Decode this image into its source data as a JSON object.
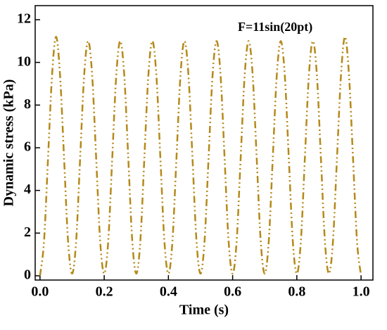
{
  "chart_data": {
    "type": "line",
    "xlabel": "Time (s)",
    "ylabel": "Dynamic stress (kPa)",
    "annotation": "F=11sin(20pt)",
    "x": [
      0,
      0.0125,
      0.025,
      0.0375,
      0.05,
      0.0625,
      0.075,
      0.0875,
      0.1,
      0.1125,
      0.125,
      0.1375,
      0.15,
      0.1625,
      0.175,
      0.1875,
      0.2,
      0.2125,
      0.225,
      0.2375,
      0.25,
      0.2625,
      0.275,
      0.2875,
      0.3,
      0.3125,
      0.325,
      0.3375,
      0.35,
      0.3625,
      0.375,
      0.3875,
      0.4,
      0.4125,
      0.425,
      0.4375,
      0.45,
      0.4625,
      0.475,
      0.4875,
      0.5,
      0.5125,
      0.525,
      0.5375,
      0.55,
      0.5625,
      0.575,
      0.5875,
      0.6,
      0.6125,
      0.625,
      0.6375,
      0.65,
      0.6625,
      0.675,
      0.6875,
      0.7,
      0.7125,
      0.725,
      0.7375,
      0.75,
      0.7625,
      0.775,
      0.7875,
      0.8,
      0.8125,
      0.825,
      0.8375,
      0.85,
      0.8625,
      0.875,
      0.8875,
      0.9,
      0.9125,
      0.925,
      0.9375,
      0.95,
      0.9625,
      0.975,
      0.9875,
      1
    ],
    "series": [
      {
        "name": "Dynamic stress",
        "color": "#b5891a",
        "values": [
          0,
          1.61,
          5.5,
          9.39,
          11.2,
          9.39,
          5.5,
          1.61,
          0.1,
          1.61,
          5.5,
          9.39,
          11,
          9.39,
          5.5,
          1.61,
          0.1,
          1.61,
          5.5,
          9.39,
          11,
          9.39,
          5.5,
          1.61,
          0.1,
          1.61,
          5.5,
          9.39,
          11,
          9.39,
          5.5,
          1.61,
          0.1,
          1.61,
          5.5,
          9.39,
          11,
          9.39,
          5.5,
          1.61,
          0.1,
          1.61,
          5.5,
          9.39,
          11,
          9.39,
          5.5,
          1.61,
          0.1,
          1.61,
          5.5,
          9.39,
          11,
          9.39,
          5.5,
          1.61,
          0.1,
          1.61,
          5.5,
          9.39,
          11,
          9.39,
          5.5,
          1.61,
          0.1,
          1.61,
          5.5,
          9.39,
          11,
          9.39,
          5.5,
          1.61,
          0.1,
          1.61,
          5.5,
          9.39,
          11.2,
          9.39,
          5.5,
          1.61,
          0
        ]
      }
    ],
    "xlim": [
      -0.015,
      1.037
    ],
    "xticks": [
      {
        "value": 0,
        "label": "0.0"
      },
      0.2,
      0.4,
      0.6,
      0.8,
      {
        "value": 1,
        "label": "1.0"
      }
    ],
    "ylim": [
      -0.2,
      12.66
    ],
    "yticks": [
      0,
      2,
      4,
      6,
      8,
      10,
      12
    ],
    "grid": false
  }
}
